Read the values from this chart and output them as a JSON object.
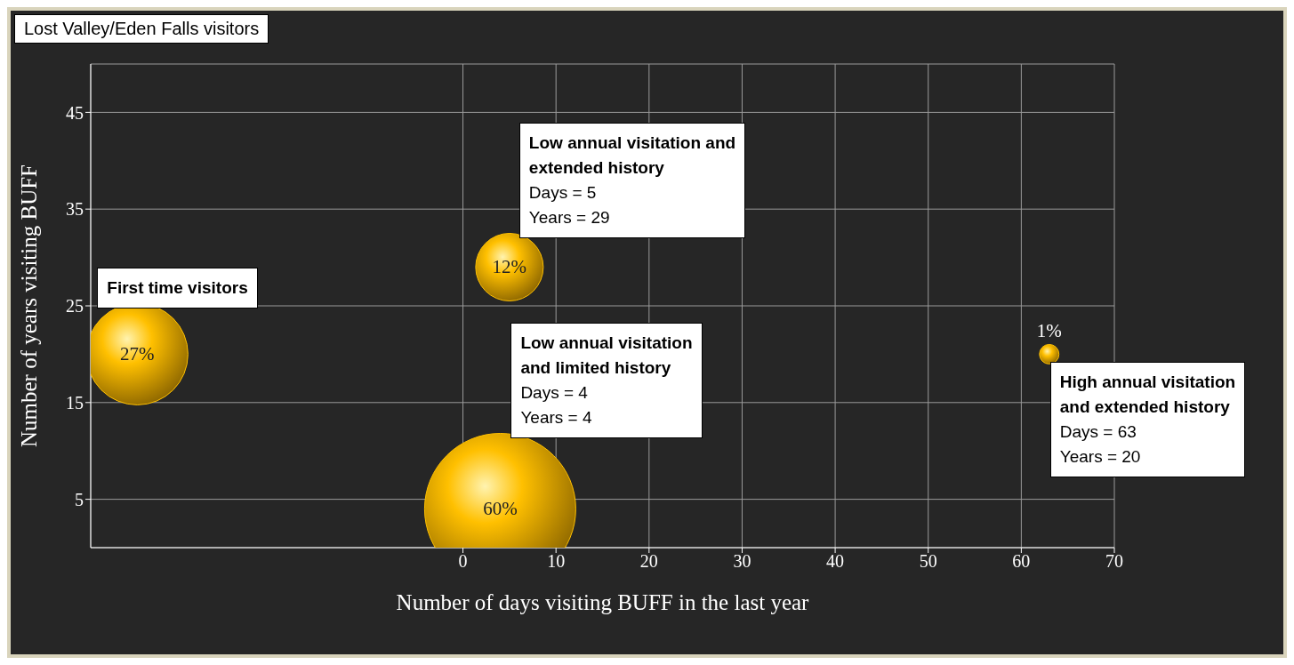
{
  "chart_data": {
    "type": "bubble",
    "title": "Lost Valley/Eden Falls visitors",
    "xlabel": "Number of days visiting BUFF in the last year",
    "ylabel": "Number of years visiting BUFF",
    "x": [
      -35,
      5,
      4,
      63
    ],
    "values": [
      20,
      29,
      4,
      20
    ],
    "sizes": [
      27,
      12,
      60,
      1
    ],
    "value_labels": [
      "27%",
      "12%",
      "60%",
      "1%"
    ],
    "color": "#ffc000",
    "xlim": [
      -40,
      70
    ],
    "xticks": [
      0,
      10,
      20,
      30,
      40,
      50,
      60,
      70
    ],
    "ylim": [
      0,
      50
    ],
    "yticks": [
      5,
      15,
      25,
      35,
      45
    ],
    "grid": true,
    "annotations": [
      "First time visitors",
      {
        "text": "Low annual visitation and\nextended history\nDays = 5\nYears = 29",
        "x": 5,
        "y": 29
      },
      "Low annual visitation\nand limited history\nDays = 4\nYears = 4",
      {
        "text": "High annual visitation\nand extended history\nDays = 63\nYears = 20",
        "x": 63,
        "y": 20
      }
    ]
  }
}
